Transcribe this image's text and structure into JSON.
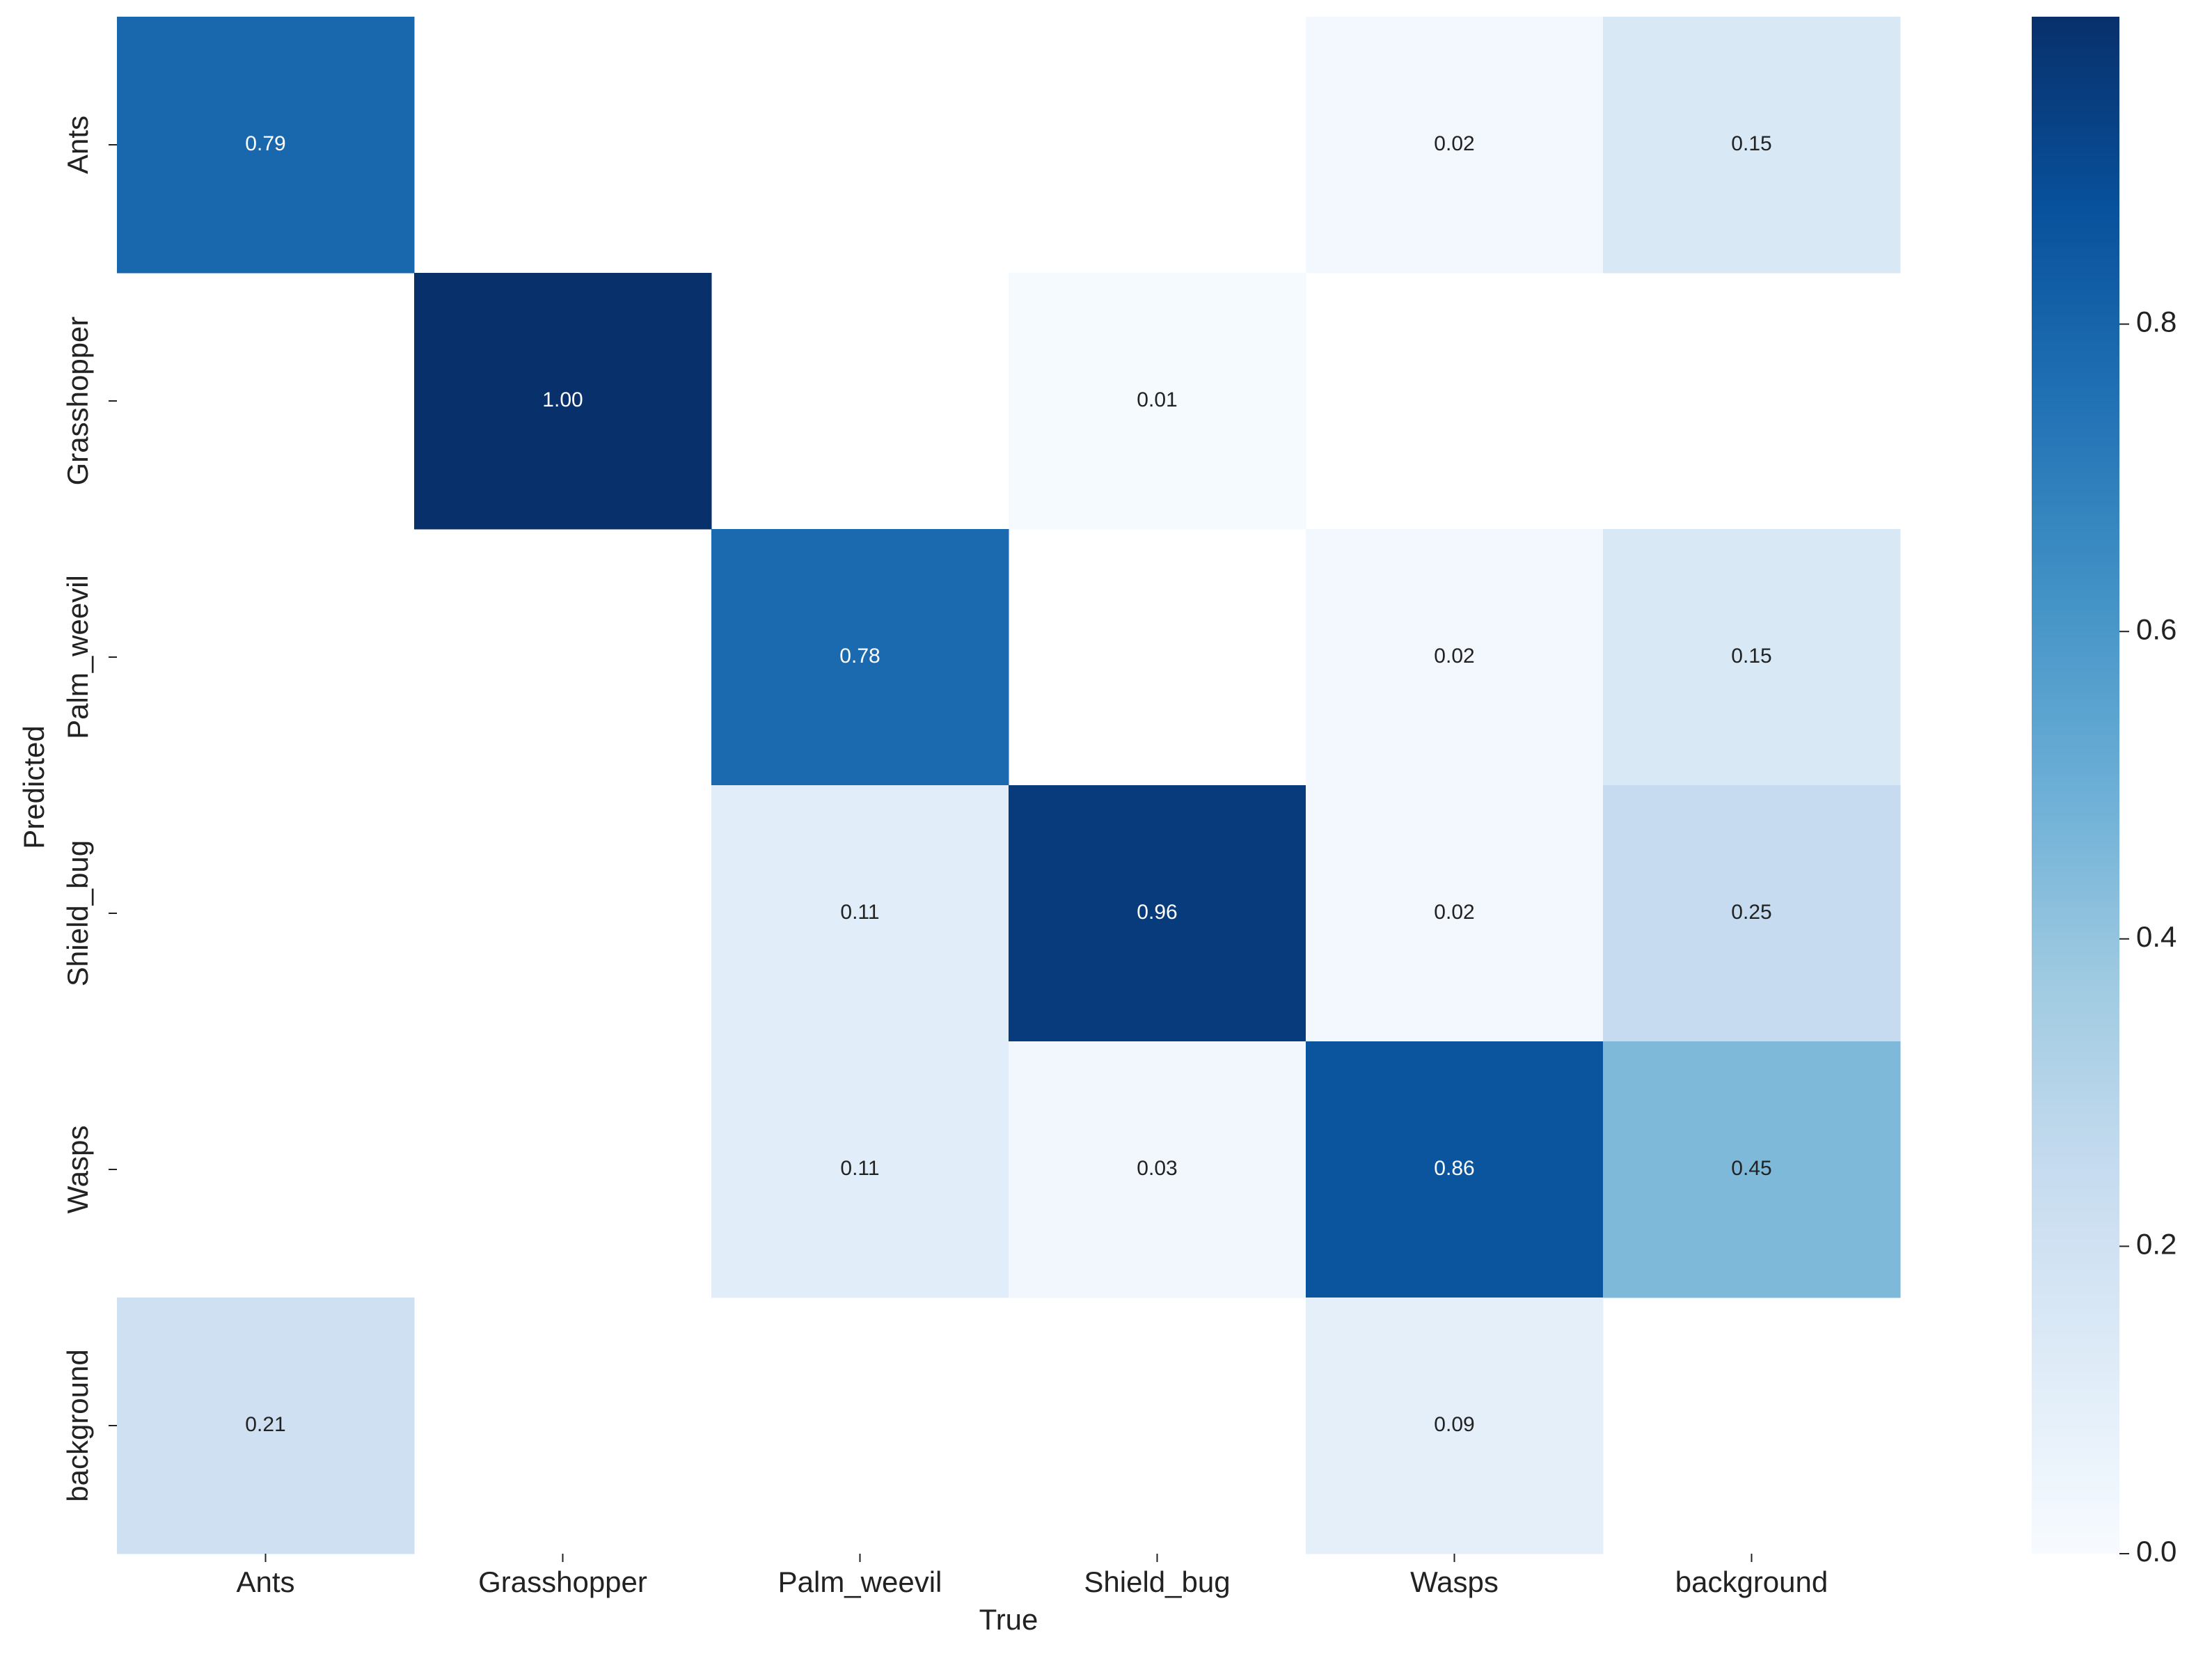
{
  "chart_data": {
    "type": "heatmap",
    "x_label": "True",
    "y_label": "Predicted",
    "x_categories": [
      "Ants",
      "Grasshopper",
      "Palm_weevil",
      "Shield_bug",
      "Wasps",
      "background"
    ],
    "y_categories": [
      "Ants",
      "Grasshopper",
      "Palm_weevil",
      "Shield_bug",
      "Wasps",
      "background"
    ],
    "values": [
      [
        0.79,
        null,
        null,
        null,
        0.02,
        0.15
      ],
      [
        null,
        1.0,
        null,
        0.01,
        null,
        null
      ],
      [
        null,
        null,
        0.78,
        null,
        0.02,
        0.15
      ],
      [
        null,
        null,
        0.11,
        0.96,
        0.02,
        0.25
      ],
      [
        null,
        null,
        0.11,
        0.03,
        0.86,
        0.45
      ],
      [
        0.21,
        null,
        null,
        null,
        0.09,
        null
      ]
    ],
    "value_labels": [
      [
        "0.79",
        null,
        null,
        null,
        "0.02",
        "0.15"
      ],
      [
        null,
        "1.00",
        null,
        "0.01",
        null,
        null
      ],
      [
        null,
        null,
        "0.78",
        null,
        "0.02",
        "0.15"
      ],
      [
        null,
        null,
        "0.11",
        "0.96",
        "0.02",
        "0.25"
      ],
      [
        null,
        null,
        "0.11",
        "0.03",
        "0.86",
        "0.45"
      ],
      [
        "0.21",
        null,
        null,
        null,
        "0.09",
        null
      ]
    ],
    "colormap": "Blues",
    "colorbar_lim": [
      0,
      1
    ],
    "colorbar_ticks": [
      {
        "value": 0,
        "label": "0.0"
      },
      0.2,
      0.4,
      0.6,
      0.8
    ]
  }
}
